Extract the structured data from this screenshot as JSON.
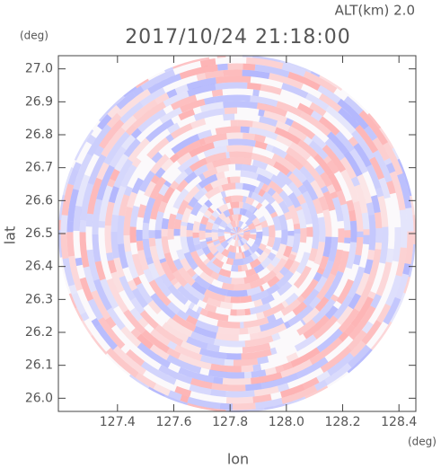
{
  "chart_data": {
    "type": "radar-ppi",
    "title": "2017/10/24 21:18:00",
    "subtitle": "ALT(km) 2.0",
    "x_label": "lon",
    "y_label": "lat",
    "x_unit": "(deg)",
    "y_unit": "(deg)",
    "xlim": [
      127.19,
      128.46
    ],
    "xticks": [
      127.4,
      127.6,
      127.8,
      {
        "value": 128.0,
        "label": "128.0"
      },
      128.2,
      128.4
    ],
    "ylim": [
      25.96,
      27.04
    ],
    "yticks": [
      {
        "value": 26.0,
        "label": "26.0"
      },
      26.1,
      26.2,
      26.3,
      26.4,
      26.5,
      26.6,
      26.7,
      26.8,
      26.9,
      {
        "value": 27.0,
        "label": "27.0"
      }
    ]
  }
}
